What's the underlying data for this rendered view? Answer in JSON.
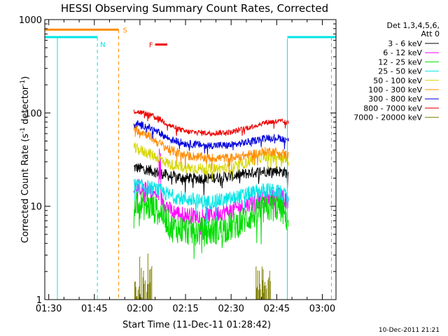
{
  "chart_data": {
    "type": "line",
    "title": "HESSI Observing Summary Count Rates, Corrected",
    "xlabel": "Start Time (11-Dec-11 01:28:42)",
    "ylabel_parts": [
      "Corrected Count Rate (s",
      "-1",
      " detector",
      "-1",
      ")"
    ],
    "y_scale": "log",
    "ylim": [
      1,
      1000
    ],
    "xlim_minutes": [
      88.7,
      184.5
    ],
    "x_ticks": [
      {
        "label": "01:30",
        "value": 90
      },
      {
        "label": "01:45",
        "value": 105
      },
      {
        "label": "02:00",
        "value": 120
      },
      {
        "label": "02:15",
        "value": 135
      },
      {
        "label": "02:30",
        "value": 150
      },
      {
        "label": "02:45",
        "value": 165
      },
      {
        "label": "03:00",
        "value": 180
      }
    ],
    "y_tick_labels": [
      {
        "label": "1",
        "value": 1
      },
      {
        "label": "10",
        "value": 10
      },
      {
        "label": "100",
        "value": 100
      },
      {
        "label": "1000",
        "value": 1000
      }
    ],
    "legend": {
      "header": [
        "Det 1,3,4,5,6,",
        "Att 0"
      ],
      "placement": "right",
      "entries": [
        {
          "label": "3 - 6 keV",
          "color": "#000000"
        },
        {
          "label": "6 - 12 keV",
          "color": "#ff00ff"
        },
        {
          "label": "12 - 25 keV",
          "color": "#00dd00"
        },
        {
          "label": "25 - 50 keV",
          "color": "#00e5e5"
        },
        {
          "label": "50 - 100 keV",
          "color": "#d6d600"
        },
        {
          "label": "100 - 300 keV",
          "color": "#ff8c00"
        },
        {
          "label": "300 - 800 keV",
          "color": "#0000dd"
        },
        {
          "label": "800 - 7000 keV",
          "color": "#ee0000"
        },
        {
          "label": "7000 - 20000 keV",
          "color": "#808000"
        }
      ]
    },
    "series": [
      {
        "name": "3 - 6 keV",
        "color": "#000000",
        "noise": 0.06,
        "points": [
          [
            118,
            26
          ],
          [
            122,
            25
          ],
          [
            126,
            23
          ],
          [
            130,
            21
          ],
          [
            135,
            20
          ],
          [
            142,
            20
          ],
          [
            150,
            21
          ],
          [
            157,
            23
          ],
          [
            162,
            24
          ],
          [
            165,
            24
          ],
          [
            168,
            23
          ],
          [
            169,
            22
          ]
        ]
      },
      {
        "name": "6 - 12 keV",
        "color": "#ff00ff",
        "noise": 0.09,
        "points": [
          [
            118,
            17
          ],
          [
            122,
            15
          ],
          [
            126,
            13
          ],
          [
            128,
            11
          ],
          [
            130,
            9
          ],
          [
            135,
            8
          ],
          [
            142,
            8
          ],
          [
            150,
            9
          ],
          [
            157,
            11
          ],
          [
            162,
            12
          ],
          [
            166,
            13
          ],
          [
            169,
            11
          ]
        ]
      },
      {
        "name": "12 - 25 keV",
        "color": "#00dd00",
        "noise": 0.16,
        "points": [
          [
            118,
            11
          ],
          [
            122,
            10
          ],
          [
            126,
            9
          ],
          [
            128,
            8
          ],
          [
            130,
            6
          ],
          [
            135,
            5.5
          ],
          [
            142,
            5.3
          ],
          [
            150,
            6
          ],
          [
            157,
            8
          ],
          [
            162,
            9.5
          ],
          [
            166,
            10
          ],
          [
            169,
            7
          ]
        ]
      },
      {
        "name": "25 - 50 keV",
        "color": "#00e5e5",
        "noise": 0.08,
        "points": [
          [
            118,
            17
          ],
          [
            122,
            16
          ],
          [
            126,
            15
          ],
          [
            130,
            13
          ],
          [
            135,
            12
          ],
          [
            142,
            11
          ],
          [
            150,
            12
          ],
          [
            157,
            14
          ],
          [
            162,
            15
          ],
          [
            166,
            14
          ],
          [
            169,
            12
          ]
        ]
      },
      {
        "name": "50 - 100 keV",
        "color": "#d6d600",
        "noise": 0.06,
        "points": [
          [
            118,
            42
          ],
          [
            122,
            38
          ],
          [
            126,
            33
          ],
          [
            130,
            28
          ],
          [
            135,
            26
          ],
          [
            142,
            25
          ],
          [
            150,
            26
          ],
          [
            157,
            31
          ],
          [
            162,
            35
          ],
          [
            166,
            34
          ],
          [
            169,
            30
          ]
        ]
      },
      {
        "name": "100 - 300 keV",
        "color": "#ff8c00",
        "noise": 0.05,
        "points": [
          [
            118,
            68
          ],
          [
            122,
            60
          ],
          [
            126,
            48
          ],
          [
            130,
            40
          ],
          [
            135,
            35
          ],
          [
            142,
            33
          ],
          [
            150,
            33
          ],
          [
            157,
            36
          ],
          [
            162,
            39
          ],
          [
            166,
            38
          ],
          [
            169,
            35
          ]
        ]
      },
      {
        "name": "300 - 800 keV",
        "color": "#0000dd",
        "noise": 0.04,
        "points": [
          [
            118,
            78
          ],
          [
            122,
            72
          ],
          [
            126,
            62
          ],
          [
            130,
            52
          ],
          [
            135,
            47
          ],
          [
            142,
            45
          ],
          [
            150,
            45
          ],
          [
            157,
            50
          ],
          [
            162,
            55
          ],
          [
            166,
            54
          ],
          [
            169,
            50
          ]
        ]
      },
      {
        "name": "800 - 7000 keV",
        "color": "#ee0000",
        "noise": 0.03,
        "points": [
          [
            118,
            105
          ],
          [
            122,
            98
          ],
          [
            126,
            88
          ],
          [
            130,
            73
          ],
          [
            135,
            63
          ],
          [
            142,
            61
          ],
          [
            150,
            62
          ],
          [
            157,
            72
          ],
          [
            162,
            80
          ],
          [
            166,
            81
          ],
          [
            169,
            78
          ]
        ]
      },
      {
        "name": "7000 - 20000 keV",
        "color": "#808000",
        "noise": 0.25,
        "points": [
          [
            118.3,
            2.0
          ],
          [
            124,
            1.9
          ],
          [
            158.2,
            2.1
          ],
          [
            163,
            2.0
          ]
        ]
      }
    ],
    "flags": [
      {
        "letter": "N",
        "color": "#00e5e5",
        "start": 88.7,
        "end": 106,
        "level": 650,
        "dash_at": 106
      },
      {
        "letter": "N",
        "color": "#00e5e5",
        "start": 168.5,
        "end": 184.5,
        "level": 650,
        "dash_at": 183,
        "solid_at": 168.5,
        "hide_letter": true
      },
      {
        "letter": "S",
        "color": "#ff8c00",
        "start": 88.7,
        "end": 113,
        "level": 780,
        "dash_at": 113
      },
      {
        "letter": "F",
        "color": "#ee0000",
        "start": 125,
        "end": 129,
        "level": 540,
        "dash_at": null
      }
    ],
    "footer_date": "10-Dec-2011 21:21"
  }
}
